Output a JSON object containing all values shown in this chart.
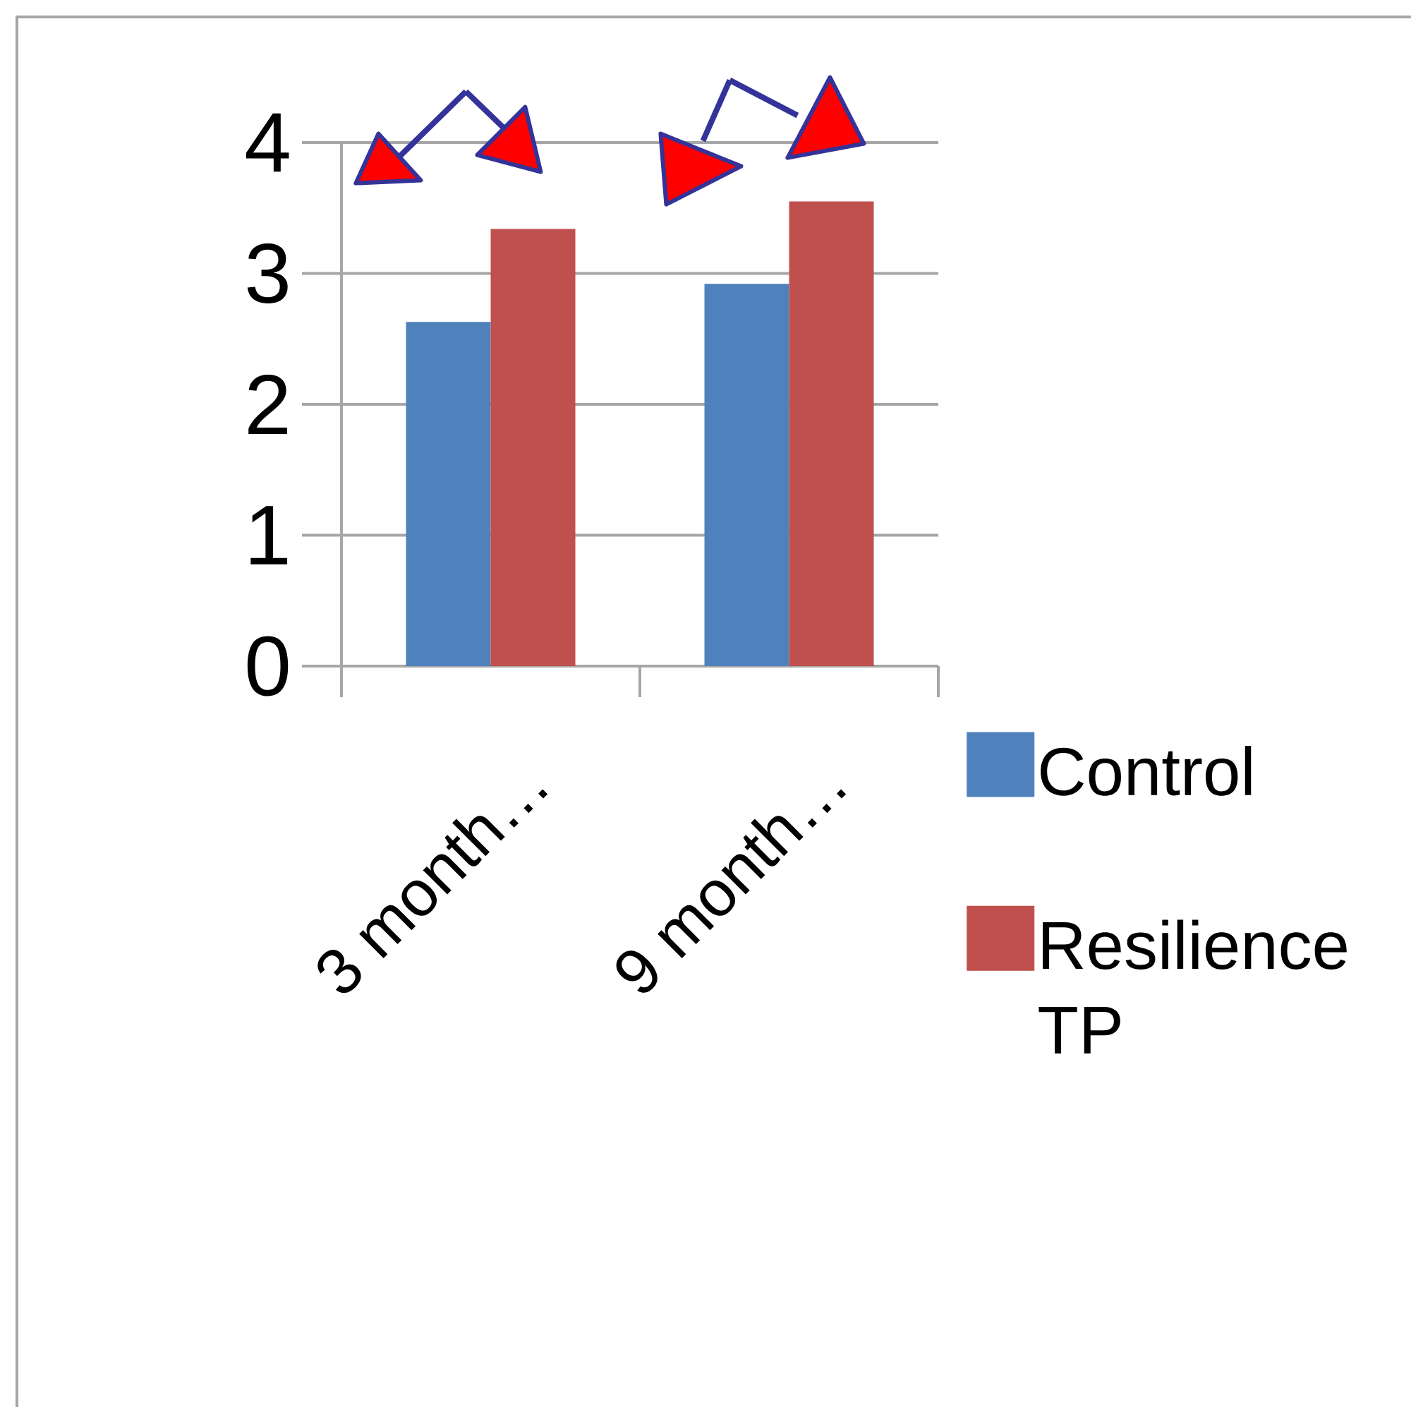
{
  "chart_data": {
    "type": "bar",
    "categories": [
      "3 month…",
      "9 month…"
    ],
    "series": [
      {
        "name": "Control",
        "color": "#4f81bd",
        "values": [
          2.63,
          2.92
        ]
      },
      {
        "name": "Resilience TP",
        "color": "#c0504d",
        "values": [
          3.34,
          3.55
        ]
      }
    ],
    "ylim": [
      0,
      4
    ],
    "yticks": [
      0,
      1,
      2,
      3,
      4
    ],
    "grid": "y",
    "legend": "right"
  }
}
